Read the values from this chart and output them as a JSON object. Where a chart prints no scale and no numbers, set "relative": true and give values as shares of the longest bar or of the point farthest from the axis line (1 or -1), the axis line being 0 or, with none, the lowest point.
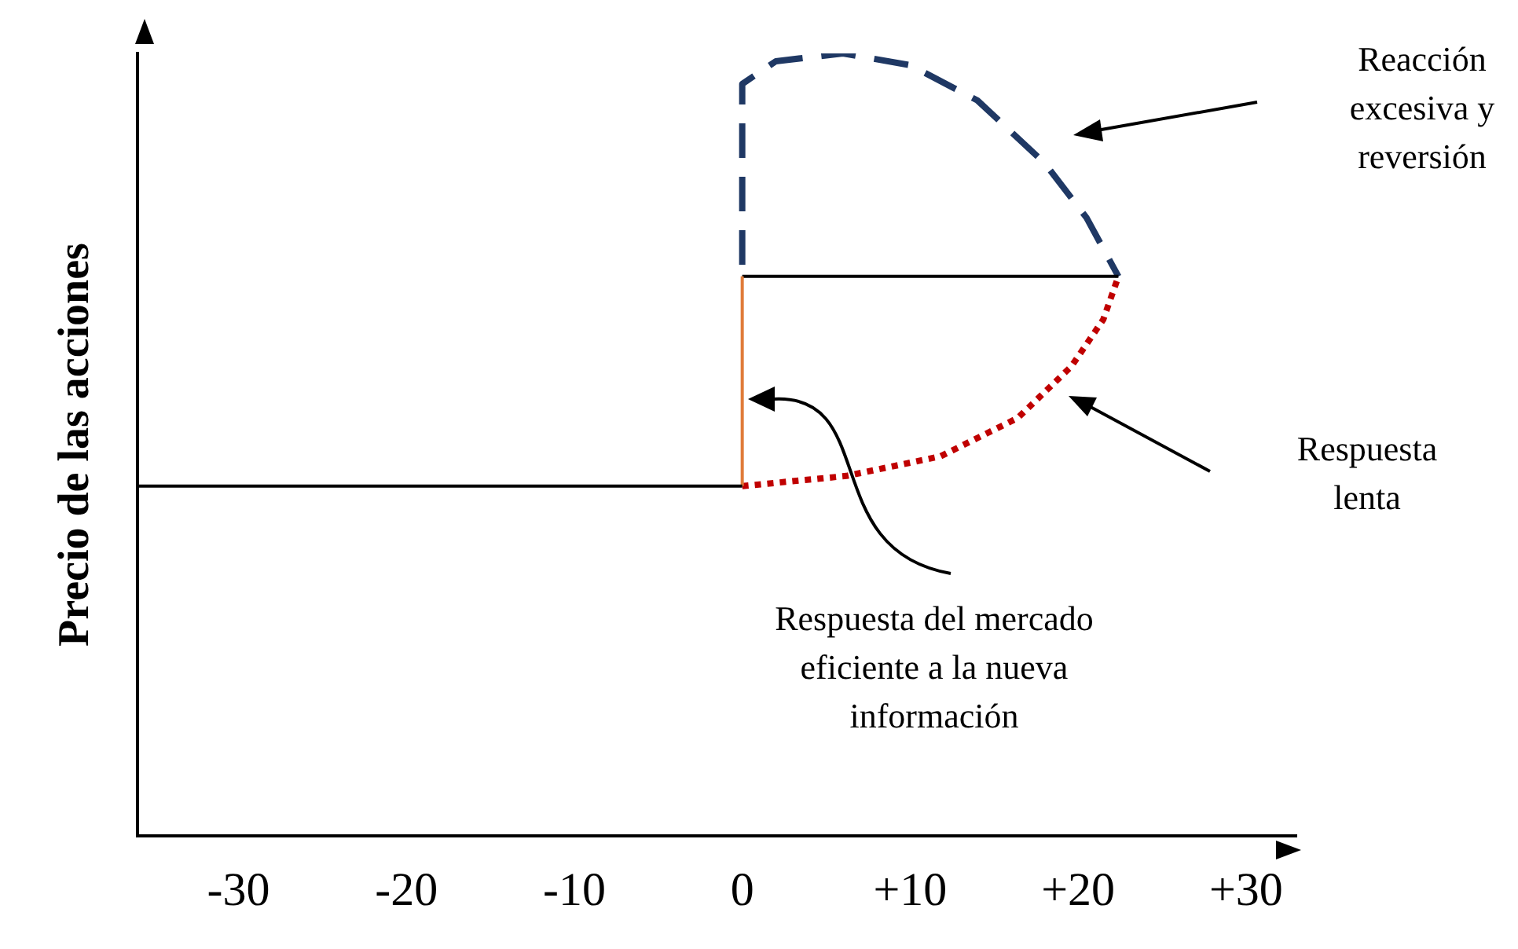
{
  "chart_data": {
    "type": "line",
    "relative": true,
    "ylabel": "Precio de las acciones",
    "xlim": [
      -36,
      33
    ],
    "xticks": [
      -30,
      -20,
      -10,
      0,
      {
        "value": 10,
        "label": "+10"
      },
      {
        "value": 20,
        "label": "+20"
      },
      {
        "value": 30,
        "label": "+30"
      }
    ],
    "grid": false,
    "legend": false,
    "marker": "none",
    "series": [
      {
        "color": "#000000",
        "line_style": "solid",
        "x": [
          -36,
          0
        ],
        "values": [
          0.447,
          0.447
        ]
      },
      {
        "color": "#e07b39",
        "line_style": "solid",
        "x": [
          0,
          0
        ],
        "values": [
          0.447,
          0.715
        ]
      },
      {
        "color": "#000000",
        "line_style": "solid",
        "x": [
          0,
          22.4
        ],
        "values": [
          0.715,
          0.715
        ]
      },
      {
        "color": "#1f3864",
        "line_style": "dashed",
        "x": [
          0,
          0,
          2,
          6,
          10,
          14,
          18,
          20.5,
          22.4
        ],
        "values": [
          0.73,
          0.961,
          0.99,
          1.0,
          0.985,
          0.94,
          0.86,
          0.79,
          0.715
        ]
      },
      {
        "color": "#c00000",
        "line_style": "dotted",
        "x": [
          0,
          6.2,
          11.8,
          16.4,
          19.6,
          21.5,
          22.4
        ],
        "values": [
          0.447,
          0.46,
          0.485,
          0.534,
          0.6,
          0.66,
          0.715
        ]
      }
    ],
    "annotations": [
      "Reacción excesiva y reversión",
      "Respuesta lenta",
      "Respuesta del mercado eficiente a la nueva información"
    ]
  }
}
